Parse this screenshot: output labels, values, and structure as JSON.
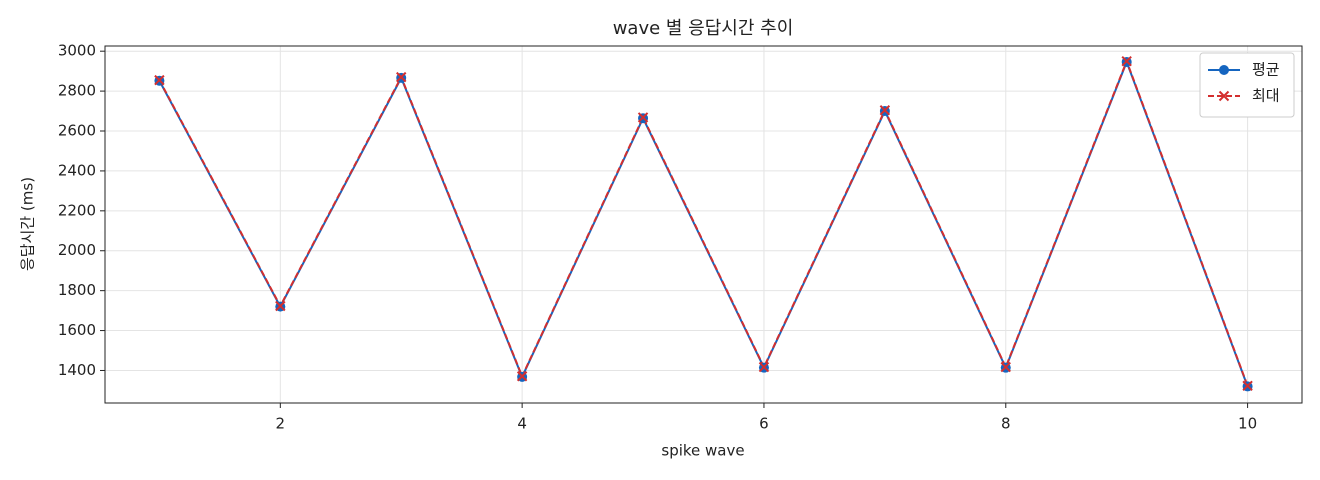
{
  "chart_data": {
    "type": "line",
    "title": "wave 별 응답시간 추이",
    "x_label": "spike wave",
    "y_label": "응답시간 (ms)",
    "x": [
      1,
      2,
      3,
      4,
      5,
      6,
      7,
      8,
      9,
      10
    ],
    "series": [
      {
        "name": "평균",
        "color": "#1565c0",
        "marker": "circle",
        "dash": false,
        "values": [
          2852,
          1720,
          2866,
          1368,
          2664,
          1414,
          2700,
          1414,
          2946,
          1320
        ]
      },
      {
        "name": "최대",
        "color": "#d32f2f",
        "marker": "x",
        "dash": true,
        "values": [
          2855,
          1723,
          2870,
          1371,
          2668,
          1417,
          2704,
          1417,
          2950,
          1323
        ]
      }
    ],
    "xlim": [
      0.55,
      10.45
    ],
    "ylim": [
      1237,
      3026
    ],
    "xticks": [
      2,
      4,
      6,
      8,
      10
    ],
    "yticks": [
      1400,
      1600,
      1800,
      2000,
      2200,
      2400,
      2600,
      2800,
      3000
    ],
    "grid": true,
    "legend": "upper right"
  }
}
